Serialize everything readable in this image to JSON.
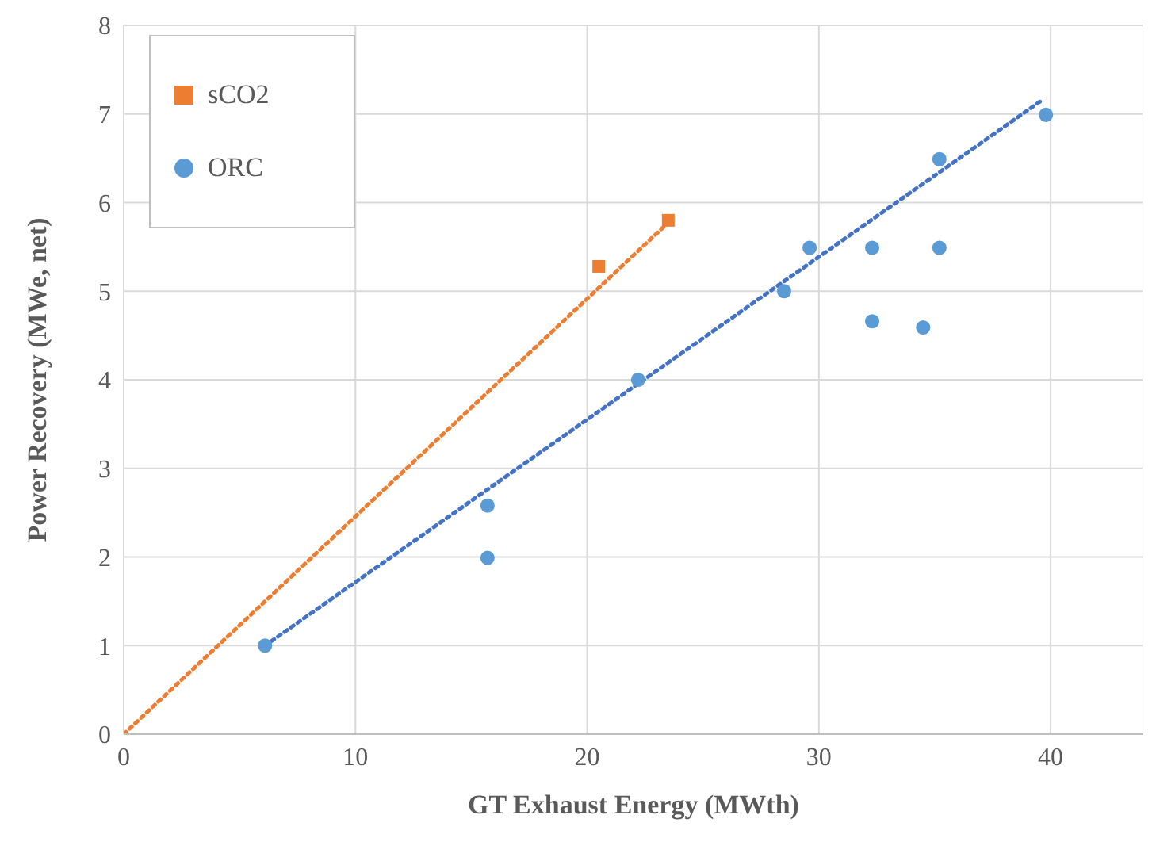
{
  "chart_data": {
    "type": "scatter",
    "xlabel": "GT Exhaust Energy (MWth)",
    "ylabel": "Power Recovery (MWe, net)",
    "xlim": [
      0,
      44
    ],
    "xticks": [
      0,
      10,
      20,
      30,
      40
    ],
    "ylim": [
      0,
      8
    ],
    "yticks": [
      0,
      1,
      2,
      3,
      4,
      5,
      6,
      7,
      8
    ],
    "grid": true,
    "legend": "top left",
    "series": [
      {
        "name": "sCO2",
        "type": "scatter",
        "marker": "square",
        "color": "#ed7d31",
        "x": [
          20.5,
          23.5
        ],
        "values": [
          5.28,
          5.8
        ]
      },
      {
        "name": "ORC",
        "type": "scatter",
        "marker": "circle",
        "color": "#5b9bd5",
        "x": [
          6.1,
          15.7,
          15.7,
          22.2,
          28.5,
          29.6,
          32.3,
          32.3,
          35.2,
          35.2,
          34.5,
          39.8
        ],
        "values": [
          1.0,
          2.58,
          1.99,
          4.0,
          5.0,
          5.49,
          5.49,
          4.66,
          6.49,
          5.49,
          4.59,
          6.99
        ]
      },
      {
        "type": "line",
        "marker": "none",
        "line_style": "dotted",
        "color": "#ed7d31",
        "x": [
          0,
          23.4
        ],
        "values": [
          0,
          5.75
        ]
      },
      {
        "type": "line",
        "marker": "none",
        "line_style": "dotted",
        "color": "#4472c4",
        "x": [
          6.1,
          39.6
        ],
        "values": [
          1.0,
          7.15
        ]
      }
    ]
  }
}
